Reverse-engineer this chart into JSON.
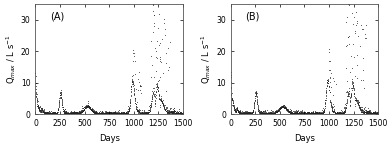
{
  "title_A": "(A)",
  "title_B": "(B)",
  "xlabel": "Days",
  "ylabel": "Q$_{max}$ / L s$^{-1}$",
  "xlim": [
    0,
    1500
  ],
  "ylim": [
    0,
    35
  ],
  "yticks": [
    0,
    10,
    20,
    30
  ],
  "xticks": [
    0,
    250,
    500,
    750,
    1000,
    1250,
    1500
  ],
  "markersize": 1.2,
  "color": "#222222",
  "background_color": "#ffffff",
  "figure_bg": "#ffffff",
  "tick_fontsize": 5.5,
  "label_fontsize": 6.0,
  "title_fontsize": 7.0
}
